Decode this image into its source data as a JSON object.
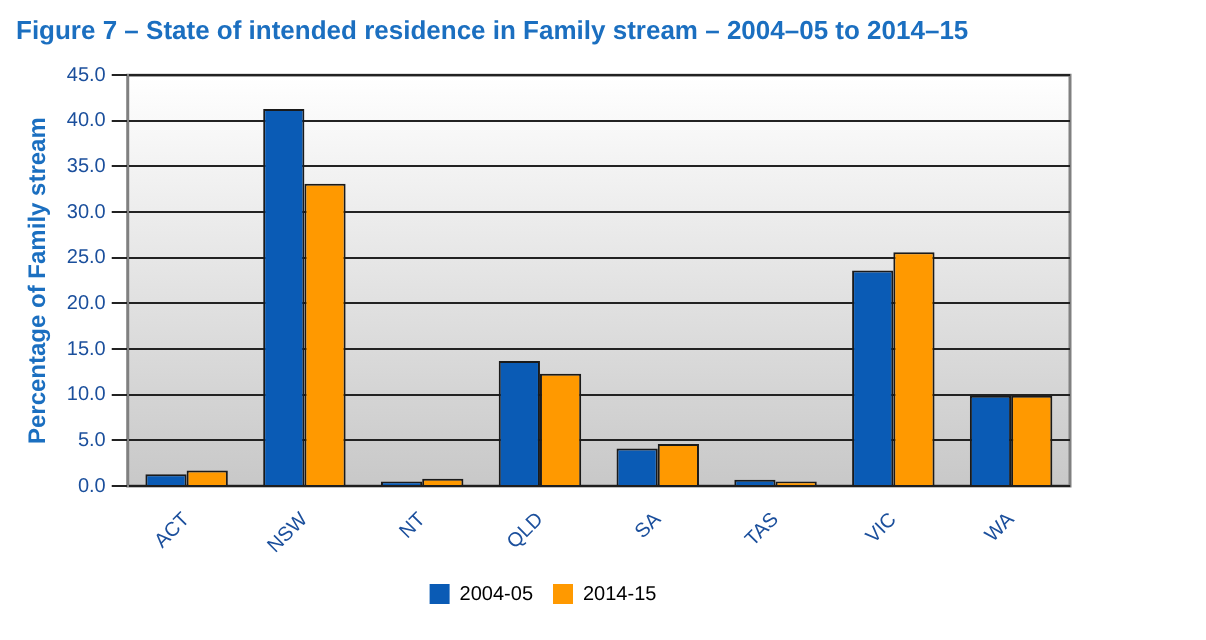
{
  "chart_data": {
    "type": "bar",
    "title": "Figure 7 – State of intended residence in Family stream – 2004–05 to 2014–15",
    "ylabel": "Percentage of Family stream",
    "categories": [
      "ACT",
      "NSW",
      "NT",
      "QLD",
      "SA",
      "TAS",
      "VIC",
      "WA"
    ],
    "series": [
      {
        "name": "2004-05",
        "color": "#0a5bb5",
        "values": [
          1.3,
          41.3,
          0.5,
          13.7,
          4.1,
          0.7,
          23.6,
          9.9
        ]
      },
      {
        "name": "2014-15",
        "color": "#ff9900",
        "values": [
          1.7,
          33.1,
          0.8,
          12.3,
          4.6,
          0.5,
          25.6,
          9.9
        ]
      }
    ],
    "ylim": [
      0,
      45
    ],
    "yticks": [
      {
        "value": 0,
        "label": "0.0"
      },
      {
        "value": 5,
        "label": "5.0"
      },
      {
        "value": 10,
        "label": "10.0"
      },
      {
        "value": 15,
        "label": "15.0"
      },
      {
        "value": 20,
        "label": "20.0"
      },
      {
        "value": 25,
        "label": "25.0"
      },
      {
        "value": 30,
        "label": "30.0"
      },
      {
        "value": 35,
        "label": "35.0"
      },
      {
        "value": 40,
        "label": "40.0"
      },
      {
        "value": 45,
        "label": "45.0"
      }
    ],
    "grid": "y",
    "legend": "bottom"
  }
}
